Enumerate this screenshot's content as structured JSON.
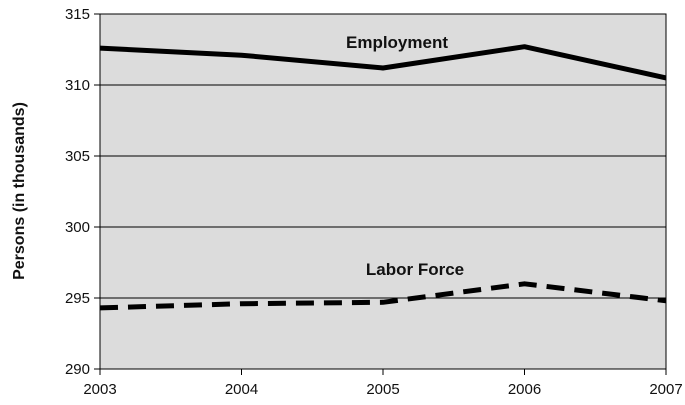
{
  "chart_data": {
    "type": "line",
    "title": "",
    "xlabel": "",
    "ylabel": "Persons (in thousands)",
    "x": [
      "2003",
      "2004",
      "2005",
      "2006",
      "2007"
    ],
    "ylim": [
      290,
      315
    ],
    "yticks": [
      "290",
      "295",
      "300",
      "305",
      "310",
      "315"
    ],
    "grid": true,
    "legend": "none",
    "background": "#dcdcdc",
    "series": [
      {
        "name": "Employment",
        "values": [
          312.6,
          312.1,
          311.2,
          312.7,
          310.5
        ],
        "style": "solid",
        "color": "#000000"
      },
      {
        "name": "Labor Force",
        "values": [
          294.3,
          294.6,
          294.7,
          296.0,
          294.8
        ],
        "style": "dashed",
        "color": "#000000"
      }
    ]
  }
}
